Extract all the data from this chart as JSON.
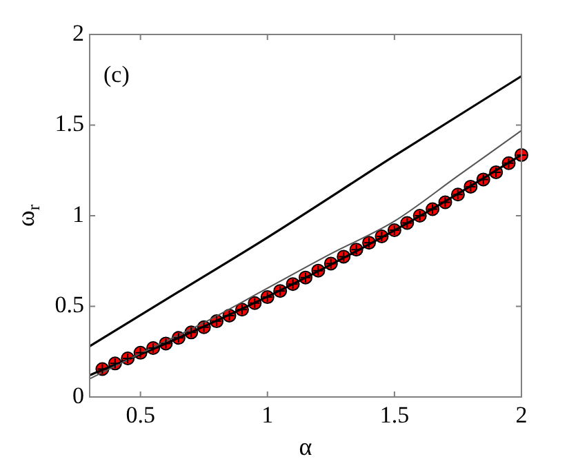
{
  "chart_data": {
    "type": "line",
    "xlabel": "α",
    "ylabel": "ω$_{r}$",
    "annotations": [
      "(c)"
    ],
    "xlim": [
      0.3,
      2
    ],
    "ylim": [
      0,
      2
    ],
    "xticks": [
      0.5,
      1,
      1.5,
      2
    ],
    "yticks": [
      0,
      0.5,
      1,
      1.5,
      2
    ],
    "grid": false,
    "legend": false,
    "line_style": "solid",
    "series": [
      {
        "color": "#000000",
        "x": [
          0.3,
          0.65,
          1,
          1.5,
          2
        ],
        "values": [
          0.28,
          0.58,
          0.88,
          1.33,
          1.77
        ]
      },
      {
        "color": "#555555",
        "x": [
          0.3,
          0.5,
          0.75,
          1,
          1.25,
          1.5,
          1.75,
          2
        ],
        "values": [
          0.1,
          0.24,
          0.41,
          0.6,
          0.79,
          0.97,
          1.22,
          1.47
        ]
      },
      {
        "color": "#000000",
        "x": [
          0.3,
          0.625,
          1.125,
          1.625,
          2
        ],
        "values": [
          0.12,
          0.31,
          0.64,
          1.018,
          1.335
        ]
      },
      {
        "type": "scatter",
        "color": "#ff0000",
        "marker": "circle",
        "x": [
          0.35,
          0.4,
          0.45,
          0.5,
          0.55,
          0.6,
          0.65,
          0.7,
          0.75,
          0.8,
          0.85,
          0.9,
          0.95,
          1,
          1.05,
          1.1,
          1.15,
          1.2,
          1.25,
          1.3,
          1.35,
          1.4,
          1.45,
          1.5,
          1.55,
          1.6,
          1.65,
          1.7,
          1.75,
          1.8,
          1.85,
          1.9,
          1.95,
          2
        ],
        "values": [
          0.154,
          0.185,
          0.213,
          0.244,
          0.27,
          0.295,
          0.326,
          0.356,
          0.385,
          0.418,
          0.449,
          0.482,
          0.518,
          0.551,
          0.585,
          0.623,
          0.659,
          0.697,
          0.736,
          0.774,
          0.813,
          0.851,
          0.886,
          0.92,
          0.96,
          1.0,
          1.036,
          1.074,
          1.117,
          1.16,
          1.2,
          1.24,
          1.29,
          1.335
        ]
      }
    ]
  }
}
